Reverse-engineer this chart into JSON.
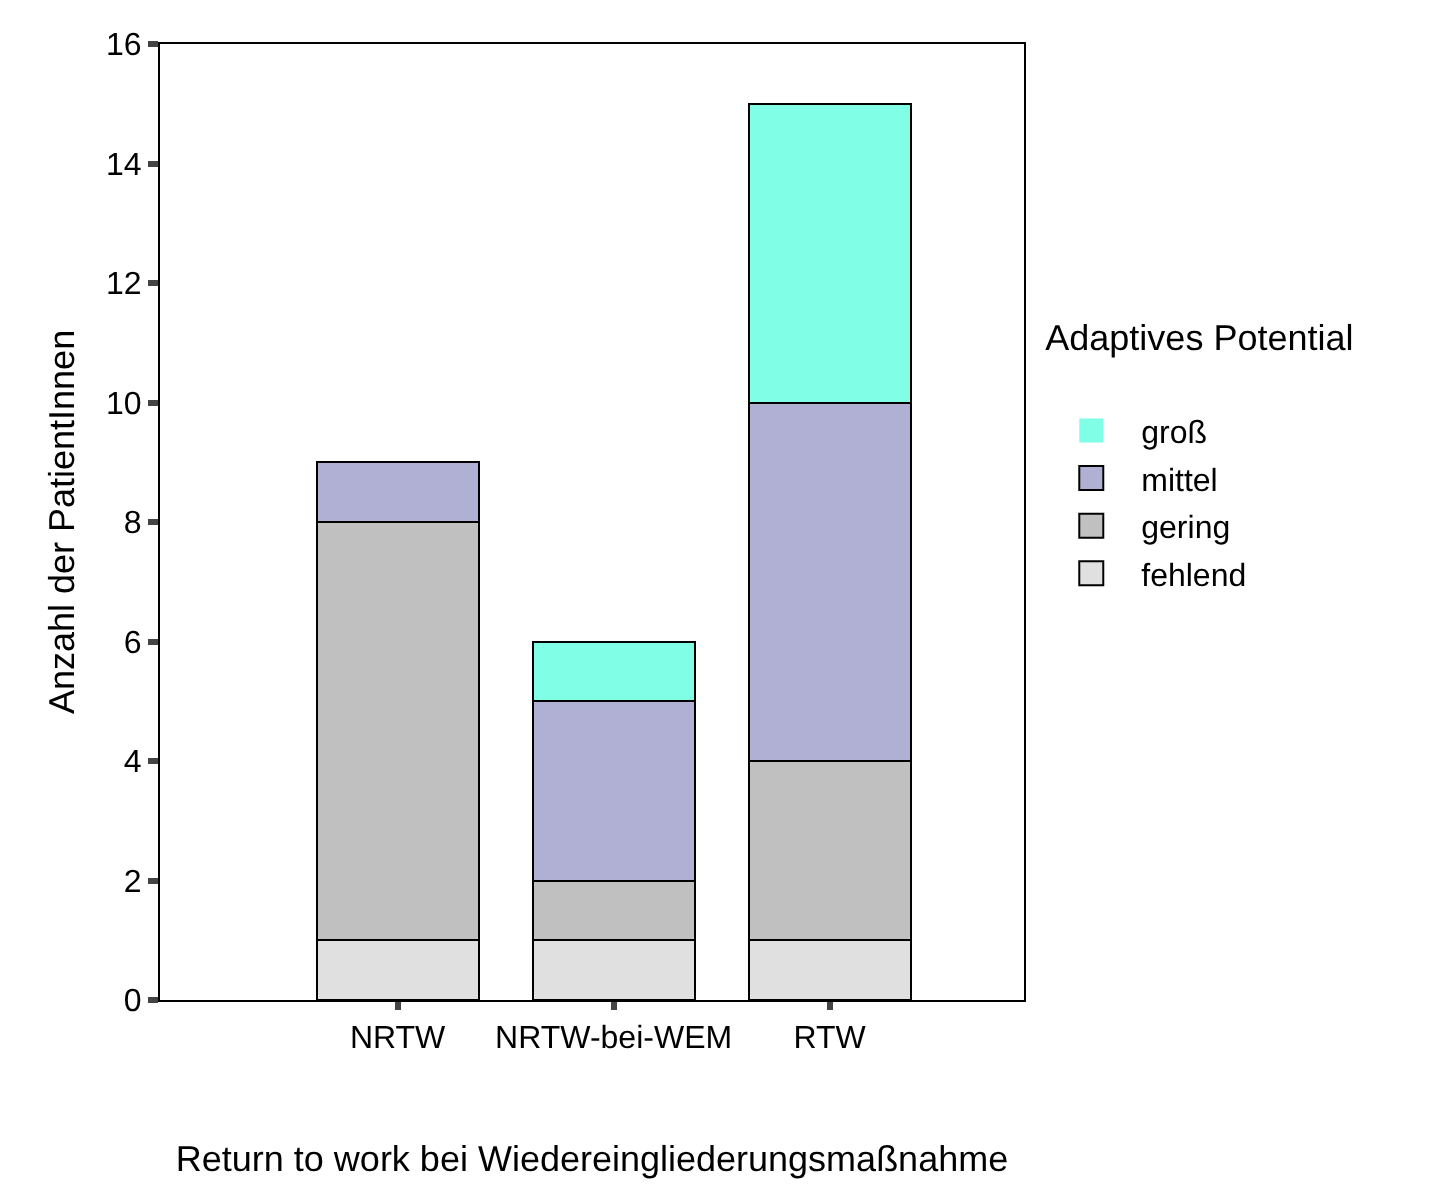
{
  "chart_data": {
    "type": "bar",
    "stacked": true,
    "xlabel": "Return to work bei Wiedereingliederungsmaßnahme",
    "ylabel": "Anzahl der PatientInnen",
    "legend_title": "Adaptives Potential",
    "categories": [
      "NRTW",
      "NRTW-bei-WEM",
      "RTW"
    ],
    "series": [
      {
        "name": "fehlend",
        "color": "#e0e0e0",
        "values": [
          1,
          1,
          1
        ]
      },
      {
        "name": "gering",
        "color": "#c0c0c0",
        "values": [
          7,
          1,
          3
        ]
      },
      {
        "name": "mittel",
        "color": "#b0b0d4",
        "values": [
          1,
          3,
          6
        ]
      },
      {
        "name": "groß",
        "color": "#80ffe6",
        "values": [
          0,
          1,
          5
        ]
      }
    ],
    "ylim": [
      0,
      16
    ],
    "yticks": [
      0,
      2,
      4,
      6,
      8,
      10,
      12,
      14,
      16
    ],
    "grid": false,
    "legend": "right"
  }
}
